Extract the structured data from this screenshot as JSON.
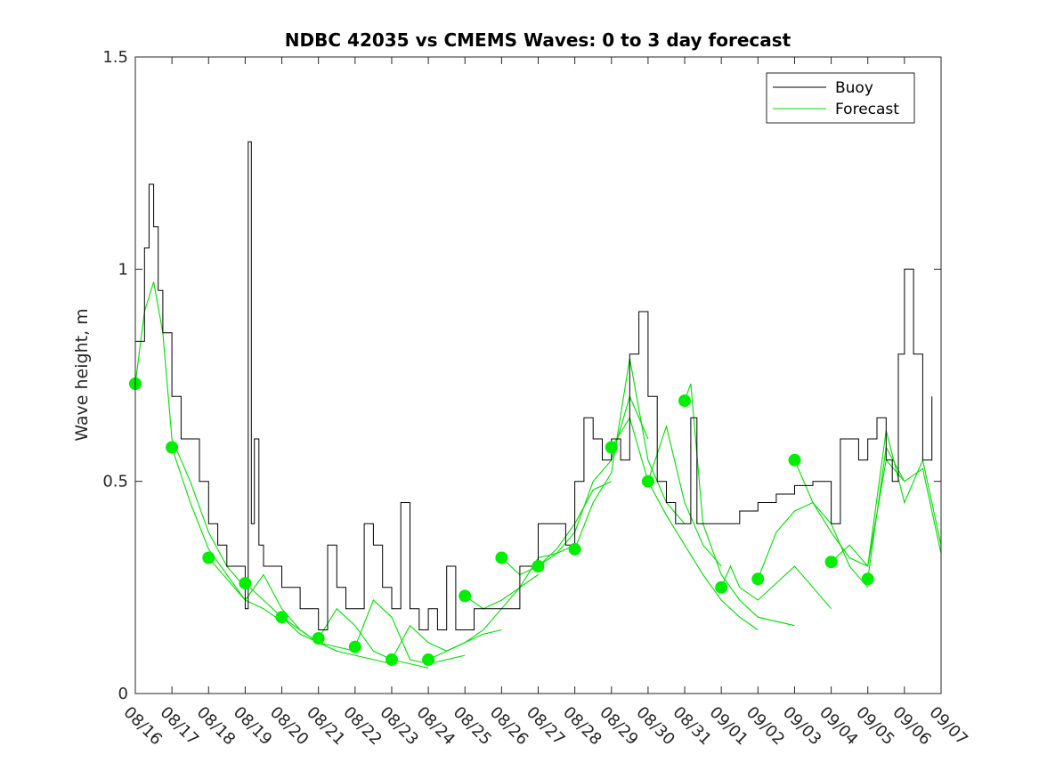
{
  "chart_data": {
    "type": "line",
    "title": "NDBC 42035 vs CMEMS Waves: 0 to 3 day forecast",
    "xlabel": "",
    "ylabel": "Wave height, m",
    "ylim": [
      0,
      1.5
    ],
    "xlim": [
      "08/16",
      "09/07"
    ],
    "x_ticks": [
      "08/16",
      "08/17",
      "08/18",
      "08/19",
      "08/20",
      "08/21",
      "08/22",
      "08/23",
      "08/24",
      "08/25",
      "08/26",
      "08/27",
      "08/28",
      "08/29",
      "08/30",
      "08/31",
      "09/01",
      "09/02",
      "09/03",
      "09/04",
      "09/05",
      "09/06",
      "09/07"
    ],
    "y_ticks": [
      {
        "value": 0,
        "label": "0"
      },
      {
        "value": 0.5,
        "label": "0.5"
      },
      {
        "value": 1,
        "label": "1"
      },
      {
        "value": 1.5,
        "label": "1.5"
      }
    ],
    "grid": false,
    "legend_position": "top-right",
    "colors": {
      "buoy": "#000000",
      "forecast": "#00dd00",
      "marker": "#00ee00"
    },
    "series": [
      {
        "name": "Buoy",
        "x": [
          "08/16 00:00",
          "08/16 06:00",
          "08/16 09:00",
          "08/16 12:00",
          "08/16 15:00",
          "08/16 18:00",
          "08/17 00:00",
          "08/17 06:00",
          "08/17 12:00",
          "08/17 18:00",
          "08/18 00:00",
          "08/18 06:00",
          "08/18 12:00",
          "08/18 18:00",
          "08/19 00:00",
          "08/19 02:00",
          "08/19 04:00",
          "08/19 06:00",
          "08/19 09:00",
          "08/19 12:00",
          "08/19 18:00",
          "08/20 00:00",
          "08/20 12:00",
          "08/21 00:00",
          "08/21 06:00",
          "08/21 12:00",
          "08/21 18:00",
          "08/22 00:00",
          "08/22 06:00",
          "08/22 12:00",
          "08/22 18:00",
          "08/23 00:00",
          "08/23 06:00",
          "08/23 12:00",
          "08/23 18:00",
          "08/24 00:00",
          "08/24 06:00",
          "08/24 12:00",
          "08/24 18:00",
          "08/25 00:00",
          "08/25 06:00",
          "08/25 12:00",
          "08/25 18:00",
          "08/26 00:00",
          "08/26 12:00",
          "08/27 00:00",
          "08/27 12:00",
          "08/27 18:00",
          "08/28 00:00",
          "08/28 06:00",
          "08/28 12:00",
          "08/28 18:00",
          "08/29 00:00",
          "08/29 06:00",
          "08/29 12:00",
          "08/29 18:00",
          "08/30 00:00",
          "08/30 06:00",
          "08/30 12:00",
          "08/30 18:00",
          "08/31 00:00",
          "08/31 04:00",
          "08/31 08:00",
          "08/31 12:00",
          "09/01 00:00",
          "09/01 12:00",
          "09/02 00:00",
          "09/02 12:00",
          "09/03 00:00",
          "09/03 12:00",
          "09/03 18:00",
          "09/04 00:00",
          "09/04 06:00",
          "09/04 12:00",
          "09/04 18:00",
          "09/05 00:00",
          "09/05 06:00",
          "09/05 12:00",
          "09/05 16:00",
          "09/05 20:00",
          "09/06 00:00",
          "09/06 06:00",
          "09/06 12:00",
          "09/06 18:00"
        ],
        "y": [
          0.83,
          1.05,
          1.2,
          1.1,
          0.95,
          0.85,
          0.7,
          0.6,
          0.6,
          0.5,
          0.4,
          0.35,
          0.3,
          0.3,
          0.2,
          1.3,
          0.4,
          0.6,
          0.35,
          0.3,
          0.3,
          0.25,
          0.2,
          0.15,
          0.35,
          0.25,
          0.2,
          0.2,
          0.4,
          0.35,
          0.25,
          0.2,
          0.45,
          0.2,
          0.15,
          0.2,
          0.15,
          0.3,
          0.15,
          0.15,
          0.2,
          0.2,
          0.2,
          0.2,
          0.3,
          0.4,
          0.4,
          0.35,
          0.5,
          0.65,
          0.6,
          0.55,
          0.6,
          0.55,
          0.8,
          0.9,
          0.7,
          0.5,
          0.45,
          0.4,
          0.4,
          0.65,
          0.4,
          0.4,
          0.4,
          0.43,
          0.45,
          0.47,
          0.49,
          0.5,
          0.5,
          0.4,
          0.6,
          0.6,
          0.55,
          0.6,
          0.65,
          0.55,
          0.5,
          0.8,
          1.0,
          0.8,
          0.55,
          0.7
        ]
      },
      {
        "name": "Forecast",
        "runs": [
          {
            "x": [
              "08/16 00:00",
              "08/16 06:00",
              "08/16 12:00",
              "08/16 18:00",
              "08/17 00:00",
              "08/17 12:00",
              "08/18 00:00",
              "08/18 12:00",
              "08/19 00:00"
            ],
            "y": [
              0.73,
              0.9,
              0.97,
              0.85,
              0.6,
              0.5,
              0.38,
              0.3,
              0.25
            ]
          },
          {
            "x": [
              "08/17 00:00",
              "08/17 12:00",
              "08/18 00:00",
              "08/18 12:00",
              "08/19 00:00",
              "08/19 12:00",
              "08/20 00:00"
            ],
            "y": [
              0.58,
              0.45,
              0.34,
              0.28,
              0.22,
              0.2,
              0.17
            ]
          },
          {
            "x": [
              "08/18 00:00",
              "08/18 12:00",
              "08/19 00:00",
              "08/19 12:00",
              "08/20 00:00",
              "08/20 12:00",
              "08/21 00:00"
            ],
            "y": [
              0.32,
              0.27,
              0.22,
              0.28,
              0.2,
              0.15,
              0.12
            ]
          },
          {
            "x": [
              "08/19 00:00",
              "08/19 12:00",
              "08/20 00:00",
              "08/20 12:00",
              "08/21 00:00",
              "08/21 12:00",
              "08/22 00:00"
            ],
            "y": [
              0.26,
              0.22,
              0.18,
              0.14,
              0.12,
              0.11,
              0.1
            ]
          },
          {
            "x": [
              "08/20 00:00",
              "08/20 12:00",
              "08/21 00:00",
              "08/21 12:00",
              "08/22 00:00",
              "08/22 12:00",
              "08/23 00:00"
            ],
            "y": [
              0.18,
              0.15,
              0.12,
              0.1,
              0.09,
              0.08,
              0.07
            ]
          },
          {
            "x": [
              "08/21 00:00",
              "08/21 12:00",
              "08/22 00:00",
              "08/22 12:00",
              "08/23 00:00",
              "08/23 12:00",
              "08/24 00:00"
            ],
            "y": [
              0.13,
              0.2,
              0.16,
              0.1,
              0.08,
              0.07,
              0.06
            ]
          },
          {
            "x": [
              "08/22 00:00",
              "08/22 12:00",
              "08/23 00:00",
              "08/23 12:00",
              "08/24 00:00",
              "08/24 12:00",
              "08/25 00:00"
            ],
            "y": [
              0.11,
              0.22,
              0.18,
              0.08,
              0.07,
              0.08,
              0.09
            ]
          },
          {
            "x": [
              "08/23 00:00",
              "08/23 12:00",
              "08/24 00:00",
              "08/24 12:00",
              "08/25 00:00",
              "08/25 12:00",
              "08/26 00:00"
            ],
            "y": [
              0.08,
              0.16,
              0.12,
              0.1,
              0.12,
              0.14,
              0.15
            ]
          },
          {
            "x": [
              "08/24 00:00",
              "08/24 12:00",
              "08/25 00:00",
              "08/25 12:00",
              "08/26 00:00",
              "08/26 12:00",
              "08/27 00:00"
            ],
            "y": [
              0.08,
              0.1,
              0.12,
              0.15,
              0.2,
              0.25,
              0.28
            ]
          },
          {
            "x": [
              "08/25 00:00",
              "08/25 12:00",
              "08/26 00:00",
              "08/26 12:00",
              "08/27 00:00",
              "08/27 12:00",
              "08/28 00:00"
            ],
            "y": [
              0.23,
              0.2,
              0.22,
              0.25,
              0.32,
              0.33,
              0.35
            ]
          },
          {
            "x": [
              "08/26 00:00",
              "08/26 12:00",
              "08/27 00:00",
              "08/27 12:00",
              "08/28 00:00",
              "08/28 12:00",
              "08/29 00:00"
            ],
            "y": [
              0.32,
              0.28,
              0.3,
              0.34,
              0.4,
              0.48,
              0.5
            ]
          },
          {
            "x": [
              "08/27 00:00",
              "08/27 12:00",
              "08/28 00:00",
              "08/28 12:00",
              "08/29 00:00",
              "08/29 12:00",
              "08/30 00:00"
            ],
            "y": [
              0.3,
              0.33,
              0.38,
              0.5,
              0.55,
              0.7,
              0.6
            ]
          },
          {
            "x": [
              "08/28 00:00",
              "08/28 12:00",
              "08/29 00:00",
              "08/29 12:00",
              "08/30 00:00",
              "08/30 12:00",
              "08/31 00:00"
            ],
            "y": [
              0.34,
              0.45,
              0.52,
              0.79,
              0.55,
              0.45,
              0.4
            ]
          },
          {
            "x": [
              "08/29 00:00",
              "08/29 12:00",
              "08/30 00:00",
              "08/30 12:00",
              "08/31 00:00",
              "08/31 12:00",
              "09/01 00:00"
            ],
            "y": [
              0.58,
              0.65,
              0.5,
              0.63,
              0.45,
              0.35,
              0.3
            ]
          },
          {
            "x": [
              "08/30 00:00",
              "08/30 12:00",
              "08/31 00:00",
              "08/31 12:00",
              "09/01 00:00",
              "09/01 12:00",
              "09/02 00:00"
            ],
            "y": [
              0.5,
              0.42,
              0.35,
              0.28,
              0.22,
              0.18,
              0.15
            ]
          },
          {
            "x": [
              "08/31 00:00",
              "08/31 04:00",
              "08/31 12:00",
              "09/01 00:00",
              "09/01 12:00",
              "09/02 00:00",
              "09/03 00:00"
            ],
            "y": [
              0.69,
              0.73,
              0.4,
              0.28,
              0.22,
              0.18,
              0.16
            ]
          },
          {
            "x": [
              "09/01 00:00",
              "09/01 06:00",
              "09/01 12:00",
              "09/02 00:00",
              "09/02 12:00",
              "09/03 00:00",
              "09/04 00:00"
            ],
            "y": [
              0.25,
              0.3,
              0.25,
              0.22,
              0.26,
              0.3,
              0.2
            ]
          },
          {
            "x": [
              "09/02 00:00",
              "09/02 12:00",
              "09/03 00:00",
              "09/03 12:00",
              "09/04 00:00",
              "09/04 12:00",
              "09/05 00:00"
            ],
            "y": [
              0.27,
              0.38,
              0.43,
              0.45,
              0.4,
              0.3,
              0.25
            ]
          },
          {
            "x": [
              "09/03 00:00",
              "09/03 12:00",
              "09/04 00:00",
              "09/04 12:00",
              "09/05 00:00",
              "09/05 12:00",
              "09/06 00:00"
            ],
            "y": [
              0.55,
              0.45,
              0.38,
              0.32,
              0.3,
              0.55,
              0.5
            ]
          },
          {
            "x": [
              "09/04 00:00",
              "09/04 12:00",
              "09/05 00:00",
              "09/05 12:00",
              "09/06 00:00",
              "09/06 12:00",
              "09/07 00:00"
            ],
            "y": [
              0.31,
              0.35,
              0.3,
              0.62,
              0.45,
              0.55,
              0.35
            ]
          },
          {
            "x": [
              "09/05 00:00",
              "09/05 12:00",
              "09/06 00:00",
              "09/06 12:00",
              "09/07 00:00"
            ],
            "y": [
              0.27,
              0.58,
              0.5,
              0.53,
              0.33
            ]
          }
        ]
      }
    ]
  }
}
